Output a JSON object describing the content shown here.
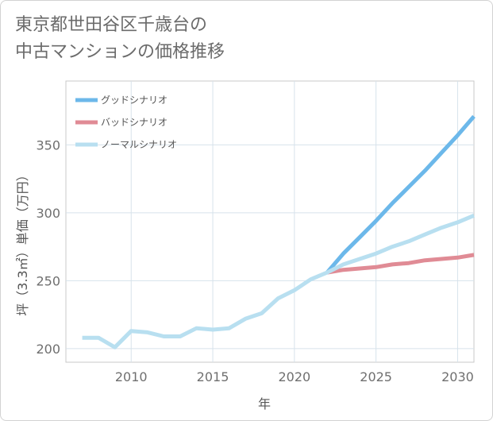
{
  "title_lines": [
    "東京都世田谷区千歳台の",
    "中古マンションの価格推移"
  ],
  "chart_data": {
    "type": "line",
    "xlabel": "年",
    "ylabel": "坪（3.3㎡）単価（万円）",
    "xlim": [
      2006,
      2031
    ],
    "ylim": [
      190,
      397
    ],
    "xticks": [
      2010,
      2015,
      2020,
      2025,
      2030
    ],
    "yticks": [
      200,
      250,
      300,
      350
    ],
    "grid": true,
    "legend_position": "top-left",
    "series": [
      {
        "name": "グッドシナリオ",
        "color": "#6cb8ea",
        "width": 5,
        "x": [
          2022,
          2023,
          2024,
          2025,
          2026,
          2027,
          2028,
          2029,
          2030,
          2031
        ],
        "y": [
          256,
          270,
          282,
          294,
          307,
          319,
          331,
          344,
          357,
          371
        ]
      },
      {
        "name": "バッドシナリオ",
        "color": "#e08b95",
        "width": 5,
        "x": [
          2022,
          2023,
          2024,
          2025,
          2026,
          2027,
          2028,
          2029,
          2030,
          2031
        ],
        "y": [
          256,
          258,
          259,
          260,
          262,
          263,
          265,
          266,
          267,
          269
        ]
      },
      {
        "name": "ノーマルシナリオ",
        "color": "#b8dff0",
        "width": 5,
        "x": [
          2007,
          2008,
          2009,
          2010,
          2011,
          2012,
          2013,
          2014,
          2015,
          2016,
          2017,
          2018,
          2019,
          2020,
          2021,
          2022,
          2023,
          2024,
          2025,
          2026,
          2027,
          2028,
          2029,
          2030,
          2031
        ],
        "y": [
          208,
          208,
          201,
          213,
          212,
          209,
          209,
          215,
          214,
          215,
          222,
          226,
          237,
          243,
          251,
          256,
          262,
          266,
          270,
          275,
          279,
          284,
          289,
          293,
          298
        ]
      }
    ]
  }
}
